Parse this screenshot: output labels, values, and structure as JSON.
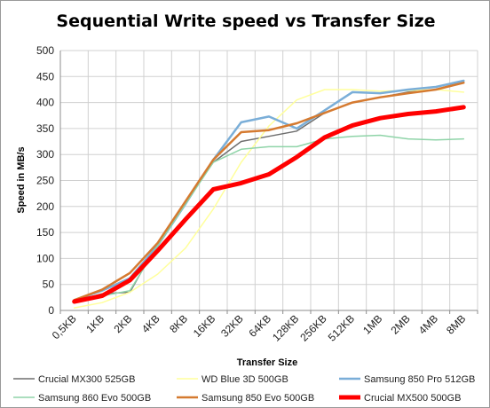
{
  "chart_data": {
    "type": "line",
    "title": "Sequential Write speed vs Transfer Size",
    "xlabel": "Transfer Size",
    "ylabel": "Speed in MB/s",
    "ylim": [
      0,
      500
    ],
    "yticks": [
      0,
      50,
      100,
      150,
      200,
      250,
      300,
      350,
      400,
      450,
      500
    ],
    "grid": true,
    "legend_position": "bottom",
    "categories": [
      "0,5KB",
      "1KB",
      "2KB",
      "4KB",
      "8KB",
      "16KB",
      "32KB",
      "64KB",
      "128KB",
      "256KB",
      "512KB",
      "1MB",
      "2MB",
      "4MB",
      "8MB"
    ],
    "series": [
      {
        "name": "Crucial MX300 525GB",
        "color": "#6e6e6e",
        "width": 1.5,
        "values": [
          18,
          32,
          35,
          130,
          210,
          285,
          325,
          335,
          345,
          380,
          400,
          410,
          420,
          425,
          440
        ]
      },
      {
        "name": "WD Blue 3D 500GB",
        "color": "#ffff9c",
        "width": 1.5,
        "values": [
          5,
          15,
          35,
          70,
          120,
          195,
          285,
          355,
          405,
          425,
          425,
          422,
          423,
          425,
          420
        ]
      },
      {
        "name": "Samsung 850 Pro 512GB",
        "color": "#7aaed8",
        "width": 2.5,
        "values": [
          20,
          38,
          62,
          125,
          205,
          290,
          362,
          373,
          350,
          385,
          420,
          418,
          425,
          430,
          442
        ]
      },
      {
        "name": "Samsung 860 Evo 500GB",
        "color": "#8fd4a8",
        "width": 1.5,
        "values": [
          15,
          28,
          38,
          125,
          205,
          285,
          310,
          315,
          315,
          330,
          335,
          337,
          330,
          328,
          330
        ]
      },
      {
        "name": "Samsung 850 Evo 500GB",
        "color": "#d57a30",
        "width": 2.5,
        "values": [
          20,
          40,
          72,
          130,
          210,
          290,
          343,
          347,
          360,
          380,
          400,
          410,
          418,
          425,
          438
        ]
      },
      {
        "name": "Crucial MX500 500GB",
        "color": "#ff0000",
        "width": 5,
        "values": [
          17,
          28,
          58,
          115,
          175,
          233,
          245,
          262,
          295,
          333,
          356,
          370,
          378,
          383,
          391
        ]
      }
    ]
  }
}
